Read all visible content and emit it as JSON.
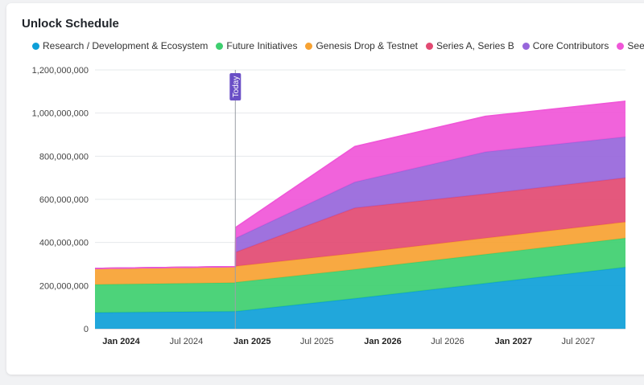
{
  "card": {
    "title": "Unlock Schedule"
  },
  "today_label": "Today",
  "chart_data": {
    "type": "area",
    "stacked": true,
    "title": "Unlock Schedule",
    "x_labels": [
      {
        "label": "Jan 2024",
        "date": "2024-01-01",
        "bold": true
      },
      {
        "label": "Jul 2024",
        "date": "2024-07-01",
        "bold": false
      },
      {
        "label": "Jan 2025",
        "date": "2025-01-01",
        "bold": true
      },
      {
        "label": "Jul 2025",
        "date": "2025-07-01",
        "bold": false
      },
      {
        "label": "Jan 2026",
        "date": "2026-01-01",
        "bold": true
      },
      {
        "label": "Jul 2026",
        "date": "2026-07-01",
        "bold": false
      },
      {
        "label": "Jan 2027",
        "date": "2027-01-01",
        "bold": true
      },
      {
        "label": "Jul 2027",
        "date": "2027-07-01",
        "bold": false
      }
    ],
    "y_ticks": [
      "0",
      "200,000,000",
      "400,000,000",
      "600,000,000",
      "800,000,000",
      "1,000,000,000",
      "1,200,000,000"
    ],
    "ylim": [
      0,
      1200000000
    ],
    "xlim": [
      "2023-10-20",
      "2027-11-10"
    ],
    "today": "2024-11-15",
    "x": [
      "2023-10-20",
      "2024-11-15",
      "2024-11-16",
      "2025-10-15",
      "2026-10-15",
      "2027-11-10"
    ],
    "series": [
      {
        "name": "Research / Development & Ecosystem",
        "color": "#0e9fd8",
        "values": [
          75000000,
          80000000,
          80000000,
          140000000,
          210000000,
          285000000
        ]
      },
      {
        "name": "Future Initiatives",
        "color": "#3ecf6f",
        "values": [
          130000000,
          133000000,
          135000000,
          135000000,
          135000000,
          135000000
        ]
      },
      {
        "name": "Genesis Drop & Testnet",
        "color": "#f7a232",
        "values": [
          75000000,
          75000000,
          75000000,
          75000000,
          75000000,
          75000000
        ]
      },
      {
        "name": "Series A, Series B",
        "color": "#e24a72",
        "values": [
          0,
          0,
          65000000,
          210000000,
          205000000,
          205000000
        ]
      },
      {
        "name": "Core Contributors",
        "color": "#9766db",
        "values": [
          0,
          0,
          65000000,
          120000000,
          195000000,
          190000000
        ]
      },
      {
        "name": "Seed",
        "color": "#f056d8",
        "values": [
          0,
          0,
          50000000,
          165000000,
          165000000,
          165000000
        ]
      }
    ]
  }
}
